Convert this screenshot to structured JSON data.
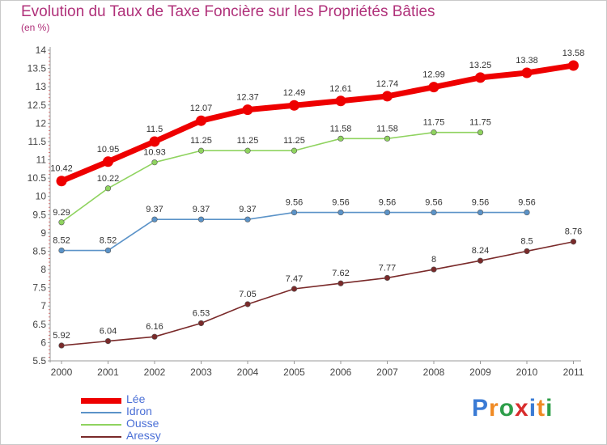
{
  "header": {
    "title": "Evolution du Taux de Taxe Foncière sur les Propriétés Bâties",
    "unit": "(en %)"
  },
  "logo": {
    "text": "Proxiti",
    "letters": [
      "P",
      "r",
      "o",
      "x",
      "i",
      "t",
      "i"
    ],
    "colors": [
      "#3a7bd5",
      "#f08a24",
      "#2e9e4a",
      "#d82d2d",
      "#3a7bd5",
      "#f08a24",
      "#2e9e4a"
    ]
  },
  "chart_data": {
    "type": "line",
    "title": "Evolution du Taux de Taxe Foncière sur les Propriétés Bâties",
    "ylabel": "(en %)",
    "xlabel": "",
    "x": [
      "2000",
      "2001",
      "2002",
      "2003",
      "2004",
      "2005",
      "2006",
      "2007",
      "2008",
      "2009",
      "2010",
      "2011"
    ],
    "ylim": [
      5.5,
      14
    ],
    "yticks": [
      "5.5",
      "6",
      "6.5",
      "7",
      "7.5",
      "8",
      "8.5",
      "9",
      "9.5",
      "10",
      "10.5",
      "11",
      "11.5",
      "12",
      "12.5",
      "13",
      "13.5",
      "14"
    ],
    "legend_position": "bottom-left",
    "series": [
      {
        "name": "Lée",
        "color": "#ee0000",
        "emphasis": true,
        "values": [
          10.42,
          10.95,
          11.5,
          12.07,
          12.37,
          12.49,
          12.61,
          12.74,
          12.99,
          13.25,
          13.38,
          13.58
        ],
        "labels": [
          "10.42",
          "10.95",
          "11.5",
          "12.07",
          "12.37",
          "12.49",
          "12.61",
          "12.74",
          "12.99",
          "13.25",
          "13.38",
          "13.58"
        ]
      },
      {
        "name": "Idron",
        "color": "#5b93c8",
        "values": [
          8.52,
          8.52,
          9.37,
          9.37,
          9.37,
          9.56,
          9.56,
          9.56,
          9.56,
          9.56,
          9.56,
          null
        ],
        "labels": [
          "8.52",
          "8.52",
          "9.37",
          "9.37",
          "9.37",
          "9.56",
          "9.56",
          "9.56",
          "9.56",
          "9.56",
          "9.56",
          null
        ]
      },
      {
        "name": "Ousse",
        "color": "#8fd35f",
        "values": [
          9.29,
          10.22,
          10.93,
          11.25,
          11.25,
          11.25,
          11.58,
          11.58,
          11.75,
          11.75,
          null,
          null
        ],
        "labels": [
          "9.29",
          "10.22",
          "10.93",
          "11.25",
          "11.25",
          "11.25",
          "11.58",
          "11.58",
          "11.75",
          "11.75",
          null,
          null
        ]
      },
      {
        "name": "Aressy",
        "color": "#7a2a2a",
        "values": [
          5.92,
          6.04,
          6.16,
          6.53,
          7.05,
          7.47,
          7.62,
          7.77,
          8.0,
          8.24,
          8.5,
          8.76
        ],
        "labels": [
          "5.92",
          "6.04",
          "6.16",
          "6.53",
          "7.05",
          "7.47",
          "7.62",
          "7.77",
          "8",
          "8.24",
          "8.5",
          "8.76"
        ]
      }
    ]
  }
}
